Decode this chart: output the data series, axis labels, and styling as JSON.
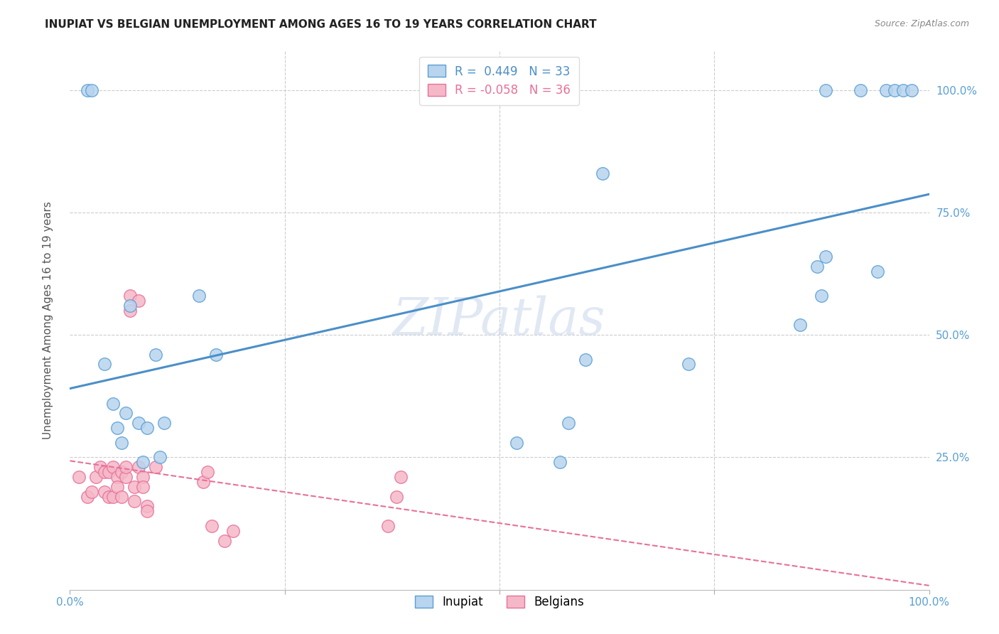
{
  "title": "INUPIAT VS BELGIAN UNEMPLOYMENT AMONG AGES 16 TO 19 YEARS CORRELATION CHART",
  "source": "Source: ZipAtlas.com",
  "ylabel": "Unemployment Among Ages 16 to 19 years",
  "xlim": [
    0,
    1.0
  ],
  "ylim": [
    -0.02,
    1.08
  ],
  "inupiat_R": 0.449,
  "inupiat_N": 33,
  "belgian_R": -0.058,
  "belgian_N": 36,
  "inupiat_color": "#b8d4ee",
  "inupiat_edge_color": "#5a9fd4",
  "inupiat_line_color": "#4a8fc8",
  "belgian_color": "#f5b8c8",
  "belgian_edge_color": "#e8709a",
  "belgian_line_color": "#e8709a",
  "watermark": "ZIPatlas",
  "inupiat_x": [
    0.02,
    0.025,
    0.04,
    0.05,
    0.055,
    0.06,
    0.065,
    0.07,
    0.08,
    0.085,
    0.09,
    0.1,
    0.105,
    0.11,
    0.15,
    0.17,
    0.52,
    0.57,
    0.58,
    0.6,
    0.62,
    0.72,
    0.85,
    0.87,
    0.875,
    0.88,
    0.88,
    0.92,
    0.94,
    0.95,
    0.96,
    0.97,
    0.98
  ],
  "inupiat_y": [
    1.0,
    1.0,
    0.44,
    0.36,
    0.31,
    0.28,
    0.34,
    0.56,
    0.32,
    0.24,
    0.31,
    0.46,
    0.25,
    0.32,
    0.58,
    0.46,
    0.28,
    0.24,
    0.32,
    0.45,
    0.83,
    0.44,
    0.52,
    0.64,
    0.58,
    0.66,
    1.0,
    1.0,
    0.63,
    1.0,
    1.0,
    1.0,
    1.0
  ],
  "belgian_x": [
    0.01,
    0.02,
    0.025,
    0.03,
    0.035,
    0.04,
    0.04,
    0.045,
    0.045,
    0.05,
    0.05,
    0.055,
    0.055,
    0.06,
    0.06,
    0.065,
    0.065,
    0.07,
    0.07,
    0.075,
    0.075,
    0.08,
    0.08,
    0.085,
    0.085,
    0.09,
    0.09,
    0.1,
    0.155,
    0.16,
    0.165,
    0.18,
    0.19,
    0.37,
    0.38,
    0.385
  ],
  "belgian_y": [
    0.21,
    0.17,
    0.18,
    0.21,
    0.23,
    0.18,
    0.22,
    0.17,
    0.22,
    0.17,
    0.23,
    0.21,
    0.19,
    0.17,
    0.22,
    0.21,
    0.23,
    0.58,
    0.55,
    0.19,
    0.16,
    0.57,
    0.23,
    0.21,
    0.19,
    0.15,
    0.14,
    0.23,
    0.2,
    0.22,
    0.11,
    0.08,
    0.1,
    0.11,
    0.17,
    0.21
  ],
  "background_color": "#ffffff",
  "grid_color": "#cccccc",
  "right_y_tick_labels": [
    "25.0%",
    "50.0%",
    "75.0%",
    "100.0%"
  ],
  "right_y_ticks": [
    0.25,
    0.5,
    0.75,
    1.0
  ],
  "x_tick_labels_left": "0.0%",
  "x_tick_labels_right": "100.0%"
}
